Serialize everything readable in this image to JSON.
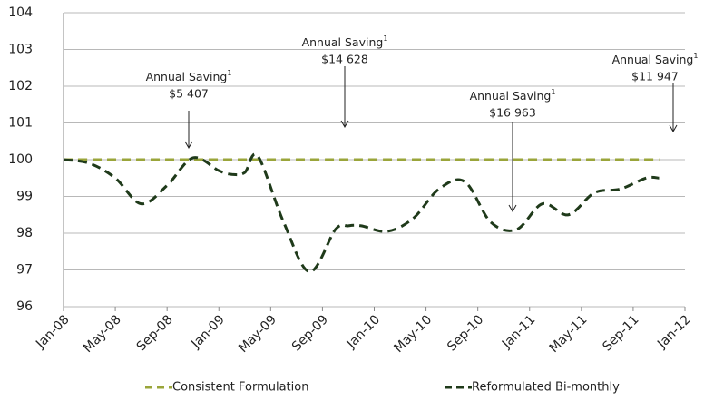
{
  "chart_data": {
    "type": "line",
    "x": [
      "Jan-08",
      "Mar-08",
      "May-08",
      "Jul-08",
      "Sep-08",
      "Nov-08",
      "Jan-09",
      "Feb-09",
      "Mar-09",
      "Apr-09",
      "Jun-09",
      "Aug-09",
      "Oct-09",
      "Nov-09",
      "Dec-09",
      "Feb-10",
      "Apr-10",
      "Jun-10",
      "Aug-10",
      "Oct-10",
      "Dec-10",
      "Feb-11",
      "Apr-11",
      "Jun-11",
      "Aug-11",
      "Oct-11",
      "Nov-11"
    ],
    "series": [
      {
        "name": "Consistent Formulation",
        "color": "#9aa53a",
        "values": [
          100,
          100,
          100,
          100,
          100,
          100,
          100,
          100,
          100,
          100,
          100,
          100,
          100,
          100,
          100,
          100,
          100,
          100,
          100,
          100,
          100,
          100,
          100,
          100,
          100,
          100,
          100
        ]
      },
      {
        "name": "Reformulated Bi-monthly",
        "color": "#1f3a1a",
        "values": [
          100.0,
          99.9,
          99.5,
          98.8,
          99.3,
          100.05,
          99.7,
          99.6,
          99.65,
          100.1,
          98.3,
          96.95,
          98.1,
          98.2,
          98.2,
          98.05,
          98.4,
          99.2,
          99.4,
          98.3,
          98.1,
          98.8,
          98.5,
          99.1,
          99.2,
          99.5,
          99.5
        ]
      }
    ],
    "ylim": [
      96,
      104
    ],
    "yticks": [
      96,
      97,
      98,
      99,
      100,
      101,
      102,
      103,
      104
    ],
    "xticks": [
      "Jan-08",
      "May-08",
      "Sep-08",
      "Jan-09",
      "May-09",
      "Sep-09",
      "Jan-10",
      "May-10",
      "Sep-10",
      "Jan-11",
      "May-11",
      "Sep-11",
      "Jan-12"
    ],
    "grid": true,
    "legend": "bottom",
    "annotations": [
      {
        "label": "Annual Saving",
        "note": "1",
        "amount": "$5 407"
      },
      {
        "label": "Annual Saving",
        "note": "1",
        "amount": "$14 628"
      },
      {
        "label": "Annual Saving",
        "note": "1",
        "amount": "$16 963"
      },
      {
        "label": "Annual Saving",
        "note": "1",
        "amount": "$11 947"
      }
    ]
  }
}
